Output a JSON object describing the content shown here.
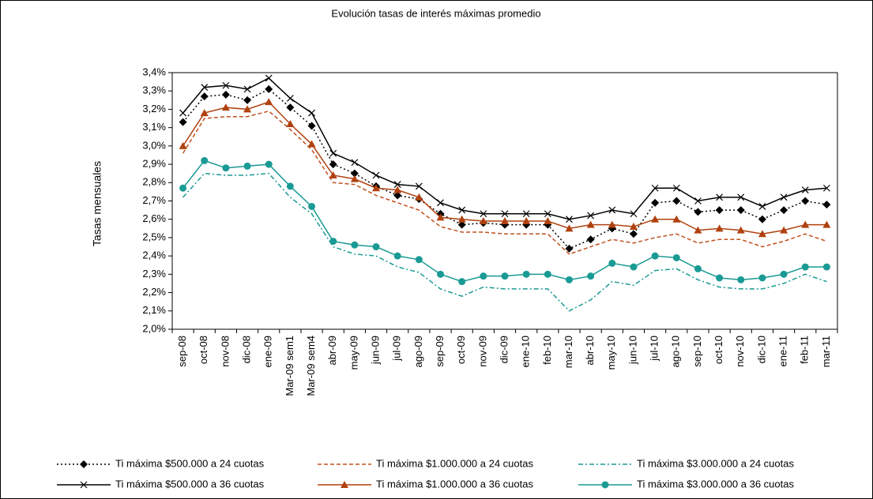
{
  "chart_data": {
    "type": "line",
    "title": "Evolución tasas de interés máximas promedio",
    "y_label": "Tasas mensuales",
    "categories": [
      "sep-08",
      "oct-08",
      "nov-08",
      "dic-08",
      "ene-09",
      "Mar-09 sem1",
      "Mar-09 sem4",
      "abr-09",
      "may-09",
      "jun-09",
      "jul-09",
      "ago-09",
      "sep-09",
      "oct-09",
      "nov-09",
      "dic-09",
      "ene-10",
      "feb-10",
      "mar-10",
      "abr-10",
      "may-10",
      "jun-10",
      "jul-10",
      "ago-10",
      "sep-10",
      "oct-10",
      "nov-10",
      "dic-10",
      "ene-11",
      "feb-11",
      "mar-11"
    ],
    "ylim": [
      2.0,
      3.4
    ],
    "yticks": [
      {
        "value": 2.0,
        "label": "2,0%"
      },
      {
        "value": 2.1,
        "label": "2,1%"
      },
      {
        "value": 2.2,
        "label": "2,2%"
      },
      {
        "value": 2.3,
        "label": "2,3%"
      },
      {
        "value": 2.4,
        "label": "2,4%"
      },
      {
        "value": 2.5,
        "label": "2,5%"
      },
      {
        "value": 2.6,
        "label": "2,6%"
      },
      {
        "value": 2.7,
        "label": "2,7%"
      },
      {
        "value": 2.8,
        "label": "2,8%"
      },
      {
        "value": 2.9,
        "label": "2,9%"
      },
      {
        "value": 3.0,
        "label": "3,0%"
      },
      {
        "value": 3.1,
        "label": "3,1%"
      },
      {
        "value": 3.2,
        "label": "3,2%"
      },
      {
        "value": 3.3,
        "label": "3,3%"
      },
      {
        "value": 3.4,
        "label": "3,4%"
      }
    ],
    "grid": false,
    "series": [
      {
        "name": "Ti máxima $500.000 a 24 cuotas",
        "color": "#000000",
        "dash": "dotted",
        "marker": "diamond",
        "values": [
          3.13,
          3.27,
          3.28,
          3.25,
          3.31,
          3.21,
          3.11,
          2.9,
          2.85,
          2.78,
          2.73,
          2.71,
          2.63,
          2.57,
          2.58,
          2.57,
          2.57,
          2.57,
          2.44,
          2.49,
          2.55,
          2.52,
          2.69,
          2.7,
          2.64,
          2.65,
          2.65,
          2.6,
          2.65,
          2.7,
          2.68
        ]
      },
      {
        "name": "Ti máxima $1.000.000 a 24 cuotas",
        "color": "#c0501f",
        "dash": "dashed",
        "marker": "none",
        "values": [
          2.96,
          3.15,
          3.16,
          3.16,
          3.19,
          3.09,
          2.98,
          2.8,
          2.79,
          2.73,
          2.69,
          2.65,
          2.56,
          2.53,
          2.53,
          2.52,
          2.52,
          2.52,
          2.41,
          2.45,
          2.49,
          2.47,
          2.5,
          2.52,
          2.47,
          2.49,
          2.49,
          2.45,
          2.48,
          2.52,
          2.48
        ]
      },
      {
        "name": "Ti máxima $3.000.000 a 24 cuotas",
        "color": "#1a9a94",
        "dash": "dashdot",
        "marker": "none",
        "values": [
          2.72,
          2.85,
          2.84,
          2.84,
          2.85,
          2.72,
          2.63,
          2.45,
          2.41,
          2.4,
          2.34,
          2.31,
          2.22,
          2.18,
          2.23,
          2.22,
          2.22,
          2.22,
          2.1,
          2.16,
          2.26,
          2.24,
          2.32,
          2.33,
          2.27,
          2.23,
          2.22,
          2.22,
          2.25,
          2.3,
          2.26
        ]
      },
      {
        "name": "Ti máxima $500.000 a 36 cuotas",
        "color": "#000000",
        "dash": "solid",
        "marker": "x",
        "values": [
          3.18,
          3.32,
          3.33,
          3.31,
          3.37,
          3.26,
          3.18,
          2.96,
          2.91,
          2.84,
          2.79,
          2.78,
          2.69,
          2.65,
          2.63,
          2.63,
          2.63,
          2.63,
          2.6,
          2.62,
          2.65,
          2.63,
          2.77,
          2.77,
          2.7,
          2.72,
          2.72,
          2.67,
          2.72,
          2.76,
          2.77
        ]
      },
      {
        "name": "Ti máxima $1.000.000 a 36 cuotas",
        "color": "#b0410f",
        "dash": "solid",
        "marker": "triangle",
        "values": [
          3.0,
          3.18,
          3.21,
          3.2,
          3.24,
          3.12,
          3.01,
          2.84,
          2.82,
          2.77,
          2.76,
          2.72,
          2.61,
          2.6,
          2.59,
          2.59,
          2.59,
          2.59,
          2.55,
          2.57,
          2.57,
          2.56,
          2.6,
          2.6,
          2.54,
          2.55,
          2.54,
          2.52,
          2.54,
          2.57,
          2.57
        ]
      },
      {
        "name": "Ti máxima $3.000.000 a 36 cuotas",
        "color": "#1a9a94",
        "dash": "solid",
        "marker": "circle",
        "values": [
          2.77,
          2.92,
          2.88,
          2.89,
          2.9,
          2.78,
          2.67,
          2.48,
          2.46,
          2.45,
          2.4,
          2.38,
          2.3,
          2.26,
          2.29,
          2.29,
          2.3,
          2.3,
          2.27,
          2.29,
          2.36,
          2.34,
          2.4,
          2.39,
          2.33,
          2.28,
          2.27,
          2.28,
          2.3,
          2.34,
          2.34
        ]
      }
    ]
  }
}
